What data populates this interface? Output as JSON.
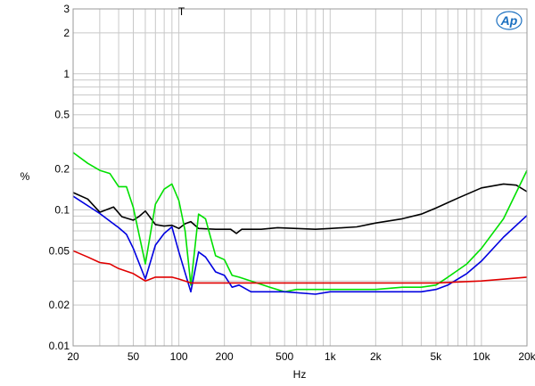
{
  "chart_data": {
    "type": "line",
    "title": "",
    "xlabel": "Hz",
    "ylabel": "%",
    "xscale": "log",
    "yscale": "log",
    "xlim": [
      20,
      20000
    ],
    "ylim": [
      0.01,
      3
    ],
    "grid": true,
    "legend": null,
    "marker_label": "T",
    "marker_x": 100,
    "logo": "Ap",
    "x_ticks": [
      {
        "value": 20,
        "label": "20"
      },
      {
        "value": 50,
        "label": "50"
      },
      {
        "value": 100,
        "label": "100"
      },
      {
        "value": 200,
        "label": "200"
      },
      {
        "value": 500,
        "label": "500"
      },
      {
        "value": 1000,
        "label": "1k"
      },
      {
        "value": 2000,
        "label": "2k"
      },
      {
        "value": 5000,
        "label": "5k"
      },
      {
        "value": 10000,
        "label": "10k"
      },
      {
        "value": 20000,
        "label": "20k"
      }
    ],
    "y_ticks": [
      {
        "value": 0.01,
        "label": "0.01"
      },
      {
        "value": 0.02,
        "label": "0.02"
      },
      {
        "value": 0.05,
        "label": "0.05"
      },
      {
        "value": 0.1,
        "label": "0.1"
      },
      {
        "value": 0.2,
        "label": "0.2"
      },
      {
        "value": 0.5,
        "label": "0.5"
      },
      {
        "value": 1,
        "label": "1"
      },
      {
        "value": 2,
        "label": "2"
      },
      {
        "value": 3,
        "label": "3"
      }
    ],
    "series": [
      {
        "name": "black",
        "color": "#000000",
        "points": [
          [
            20,
            0.134
          ],
          [
            25,
            0.12
          ],
          [
            30,
            0.096
          ],
          [
            37,
            0.105
          ],
          [
            42,
            0.089
          ],
          [
            50,
            0.084
          ],
          [
            55,
            0.09
          ],
          [
            60,
            0.098
          ],
          [
            70,
            0.078
          ],
          [
            80,
            0.076
          ],
          [
            90,
            0.077
          ],
          [
            100,
            0.073
          ],
          [
            110,
            0.079
          ],
          [
            120,
            0.082
          ],
          [
            135,
            0.073
          ],
          [
            175,
            0.072
          ],
          [
            220,
            0.072
          ],
          [
            240,
            0.067
          ],
          [
            260,
            0.072
          ],
          [
            350,
            0.072
          ],
          [
            450,
            0.074
          ],
          [
            600,
            0.073
          ],
          [
            800,
            0.072
          ],
          [
            1000,
            0.073
          ],
          [
            1500,
            0.075
          ],
          [
            2000,
            0.08
          ],
          [
            3000,
            0.086
          ],
          [
            4000,
            0.093
          ],
          [
            5000,
            0.103
          ],
          [
            7000,
            0.122
          ],
          [
            10000,
            0.145
          ],
          [
            14000,
            0.155
          ],
          [
            17000,
            0.152
          ],
          [
            20000,
            0.136
          ]
        ]
      },
      {
        "name": "green",
        "color": "#00e000",
        "points": [
          [
            20,
            0.264
          ],
          [
            25,
            0.22
          ],
          [
            30,
            0.195
          ],
          [
            35,
            0.185
          ],
          [
            40,
            0.148
          ],
          [
            45,
            0.148
          ],
          [
            50,
            0.104
          ],
          [
            60,
            0.04
          ],
          [
            70,
            0.11
          ],
          [
            80,
            0.142
          ],
          [
            90,
            0.155
          ],
          [
            100,
            0.117
          ],
          [
            110,
            0.07
          ],
          [
            120,
            0.028
          ],
          [
            135,
            0.093
          ],
          [
            150,
            0.086
          ],
          [
            175,
            0.046
          ],
          [
            200,
            0.043
          ],
          [
            225,
            0.033
          ],
          [
            250,
            0.032
          ],
          [
            300,
            0.03
          ],
          [
            400,
            0.027
          ],
          [
            500,
            0.025
          ],
          [
            600,
            0.026
          ],
          [
            700,
            0.026
          ],
          [
            1000,
            0.026
          ],
          [
            2000,
            0.026
          ],
          [
            3000,
            0.027
          ],
          [
            4000,
            0.027
          ],
          [
            5000,
            0.028
          ],
          [
            6000,
            0.032
          ],
          [
            8000,
            0.04
          ],
          [
            10000,
            0.052
          ],
          [
            14000,
            0.086
          ],
          [
            20000,
            0.195
          ]
        ]
      },
      {
        "name": "blue",
        "color": "#0000e0",
        "points": [
          [
            20,
            0.126
          ],
          [
            30,
            0.094
          ],
          [
            40,
            0.074
          ],
          [
            45,
            0.066
          ],
          [
            50,
            0.052
          ],
          [
            60,
            0.031
          ],
          [
            70,
            0.055
          ],
          [
            80,
            0.067
          ],
          [
            90,
            0.075
          ],
          [
            100,
            0.049
          ],
          [
            120,
            0.025
          ],
          [
            135,
            0.049
          ],
          [
            150,
            0.045
          ],
          [
            175,
            0.035
          ],
          [
            200,
            0.033
          ],
          [
            225,
            0.027
          ],
          [
            250,
            0.028
          ],
          [
            300,
            0.025
          ],
          [
            500,
            0.025
          ],
          [
            800,
            0.024
          ],
          [
            1000,
            0.025
          ],
          [
            2000,
            0.025
          ],
          [
            3000,
            0.025
          ],
          [
            4000,
            0.025
          ],
          [
            5000,
            0.026
          ],
          [
            6000,
            0.028
          ],
          [
            8000,
            0.034
          ],
          [
            10000,
            0.042
          ],
          [
            14000,
            0.063
          ],
          [
            20000,
            0.091
          ]
        ]
      },
      {
        "name": "red",
        "color": "#e00000",
        "points": [
          [
            20,
            0.05
          ],
          [
            25,
            0.045
          ],
          [
            30,
            0.041
          ],
          [
            35,
            0.04
          ],
          [
            40,
            0.037
          ],
          [
            50,
            0.034
          ],
          [
            60,
            0.03
          ],
          [
            70,
            0.032
          ],
          [
            90,
            0.032
          ],
          [
            100,
            0.031
          ],
          [
            120,
            0.029
          ],
          [
            150,
            0.029
          ],
          [
            200,
            0.029
          ],
          [
            500,
            0.029
          ],
          [
            1000,
            0.029
          ],
          [
            2000,
            0.029
          ],
          [
            5000,
            0.029
          ],
          [
            10000,
            0.03
          ],
          [
            20000,
            0.032
          ]
        ]
      }
    ]
  }
}
